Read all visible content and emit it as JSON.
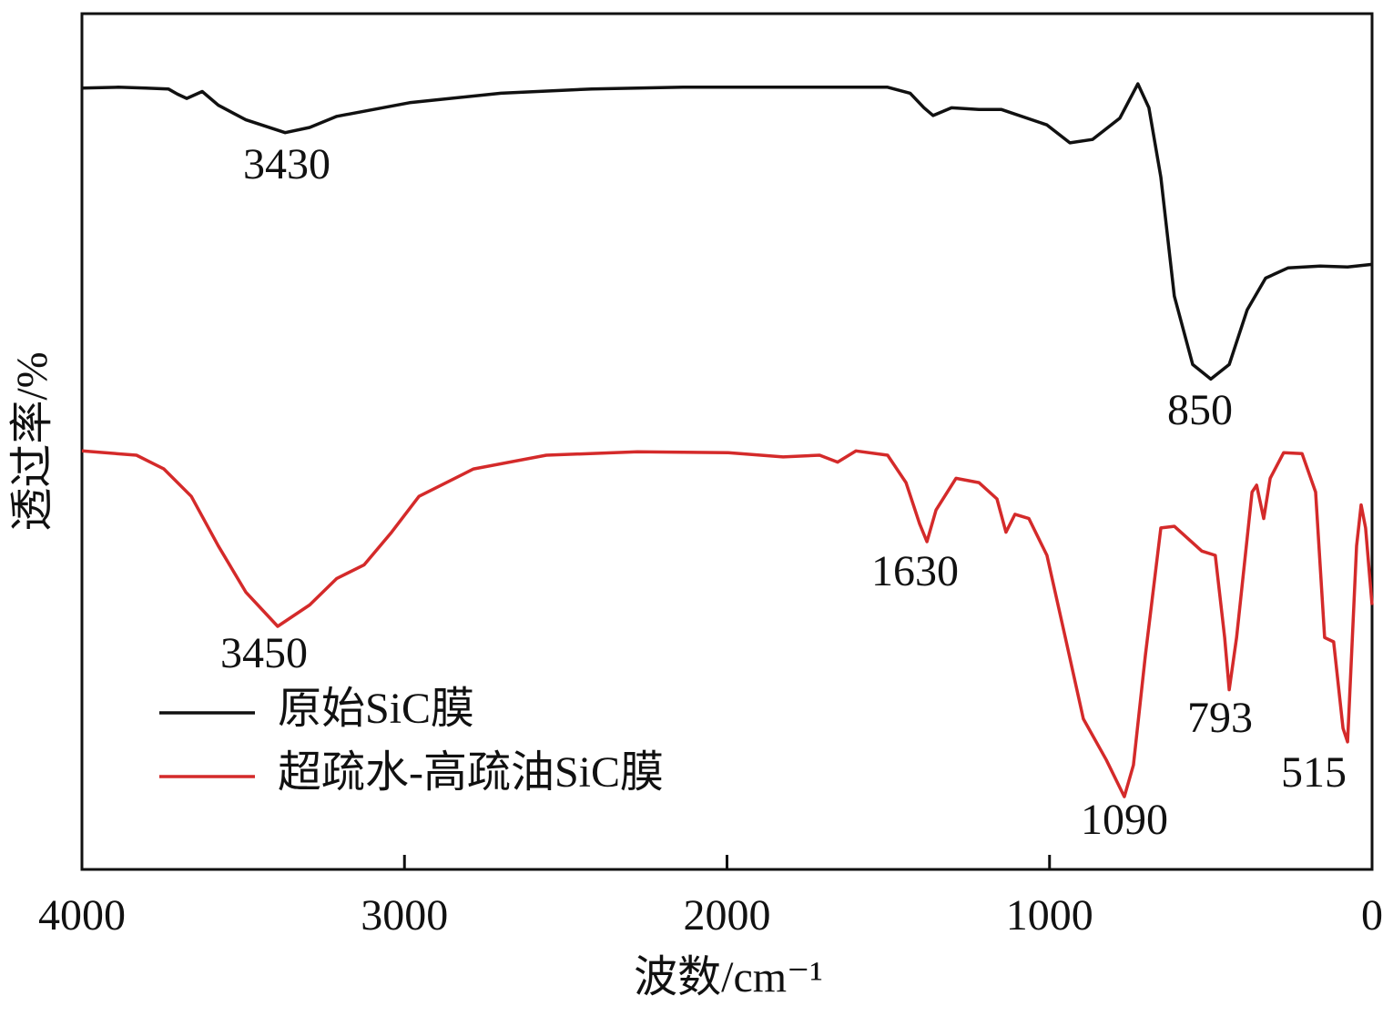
{
  "chart_data": {
    "type": "line",
    "x_label": "波数/cm⁻¹",
    "y_label": "透过率/%",
    "xlim": [
      4000,
      0
    ],
    "xticks": [
      4000,
      3000,
      2000,
      1000,
      0
    ],
    "ylim": [
      0,
      100
    ],
    "legend": "lower left",
    "series": [
      {
        "name": "原始SiC膜",
        "color": "#111111",
        "x": [
          4000,
          3887,
          3802,
          3732,
          3704,
          3675,
          3627,
          3577,
          3492,
          3370,
          3294,
          3210,
          2984,
          2701,
          2419,
          2137,
          1854,
          1502,
          1432,
          1389,
          1361,
          1304,
          1219,
          1149,
          1008,
          937,
          867,
          782,
          726,
          692,
          655,
          613,
          556,
          500,
          443,
          387,
          330,
          260,
          161,
          76,
          0
        ],
        "values": [
          91.3,
          91.4,
          91.3,
          91.2,
          90.6,
          90.1,
          90.9,
          89.3,
          87.6,
          86.1,
          86.7,
          88.0,
          89.6,
          90.7,
          91.2,
          91.4,
          91.4,
          91.4,
          90.7,
          89.0,
          88.1,
          89.0,
          88.8,
          88.8,
          87.0,
          84.9,
          85.3,
          87.8,
          91.8,
          89.0,
          80.9,
          67.0,
          59.0,
          57.3,
          59.0,
          65.4,
          69.1,
          70.3,
          70.5,
          70.4,
          70.7
        ]
      },
      {
        "name": "超疏水-高疏油SiC膜",
        "color": "#d42a2a",
        "x": [
          4000,
          3831,
          3746,
          3661,
          3577,
          3492,
          3393,
          3294,
          3210,
          3125,
          3040,
          2955,
          2786,
          2560,
          2278,
          1996,
          1826,
          1713,
          1657,
          1600,
          1502,
          1445,
          1403,
          1380,
          1352,
          1290,
          1219,
          1163,
          1135,
          1107,
          1064,
          1008,
          951,
          895,
          824,
          768,
          740,
          703,
          655,
          613,
          528,
          486,
          457,
          443,
          420,
          372,
          358,
          336,
          316,
          274,
          217,
          175,
          147,
          119,
          90,
          76,
          48,
          34,
          20,
          0
        ],
        "values": [
          48.9,
          48.4,
          46.8,
          43.6,
          37.8,
          32.4,
          28.4,
          30.9,
          34.0,
          35.6,
          39.4,
          43.6,
          46.8,
          48.4,
          48.8,
          48.7,
          48.2,
          48.4,
          47.6,
          48.9,
          48.4,
          45.2,
          40.4,
          38.3,
          42.0,
          45.7,
          45.2,
          43.3,
          39.4,
          41.5,
          41.0,
          36.7,
          27.1,
          17.6,
          12.8,
          8.5,
          12.2,
          25.0,
          39.9,
          40.1,
          37.2,
          36.7,
          27.1,
          21.0,
          27.1,
          44.1,
          44.9,
          41.0,
          45.7,
          48.7,
          48.6,
          44.1,
          27.1,
          26.6,
          16.5,
          14.9,
          37.8,
          42.6,
          39.9,
          30.9
        ]
      }
    ],
    "annotations": [
      "3430",
      "850",
      "3450",
      "1630",
      "1090",
      "793",
      "515"
    ]
  }
}
